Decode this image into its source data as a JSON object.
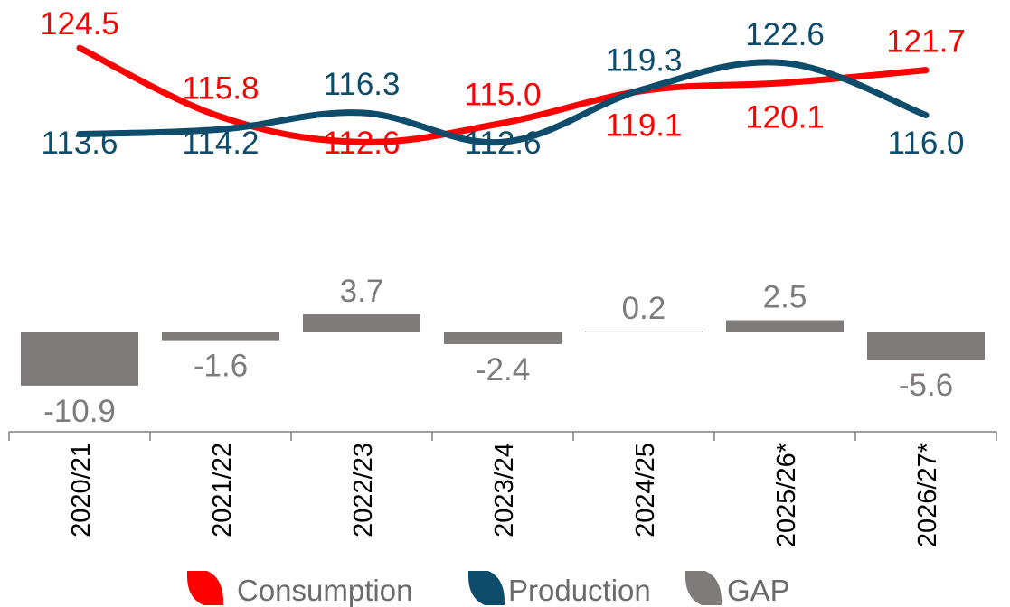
{
  "chart_data": {
    "type": "line+bar",
    "title": "",
    "categories": [
      "2020/21",
      "2021/22",
      "2022/23",
      "2023/24",
      "2024/25",
      "2025/26*",
      "2026/27*"
    ],
    "series": [
      {
        "name": "Consumption",
        "type": "line",
        "color": "#ff0000",
        "values": [
          124.5,
          115.8,
          112.6,
          115.0,
          119.1,
          120.1,
          121.7
        ],
        "labels": [
          "124.5",
          "115.8",
          "112.6",
          "115.0",
          "119.1",
          "120.1",
          "121.7"
        ]
      },
      {
        "name": "Production",
        "type": "line",
        "color": "#0d4d6b",
        "values": [
          113.6,
          114.2,
          116.3,
          112.6,
          119.3,
          122.6,
          116.0
        ],
        "labels": [
          "113.6",
          "114.2",
          "116.3",
          "112.6",
          "119.3",
          "122.6",
          "116.0"
        ]
      },
      {
        "name": "GAP",
        "type": "bar",
        "color": "#7f7b7b",
        "values": [
          -10.9,
          -1.6,
          3.7,
          -2.4,
          0.2,
          2.5,
          -5.6
        ],
        "labels": [
          "-10.9",
          "-1.6",
          "3.7",
          "-2.4",
          "0.2",
          "2.5",
          "-5.6"
        ]
      }
    ],
    "legend": {
      "position": "bottom-center",
      "items": [
        {
          "label": "Consumption",
          "color": "#ff0000",
          "icon": "leaf-icon"
        },
        {
          "label": "Production",
          "color": "#0d4d6b",
          "icon": "leaf-icon"
        },
        {
          "label": "GAP",
          "color": "#7f7b7b",
          "icon": "leaf-icon"
        }
      ]
    },
    "label_colors": {
      "Consumption": "#ff0000",
      "Production": "#0d4d6b",
      "GAP": "#7f7b7b"
    },
    "grid": false,
    "xlabel": "",
    "ylabel": ""
  }
}
